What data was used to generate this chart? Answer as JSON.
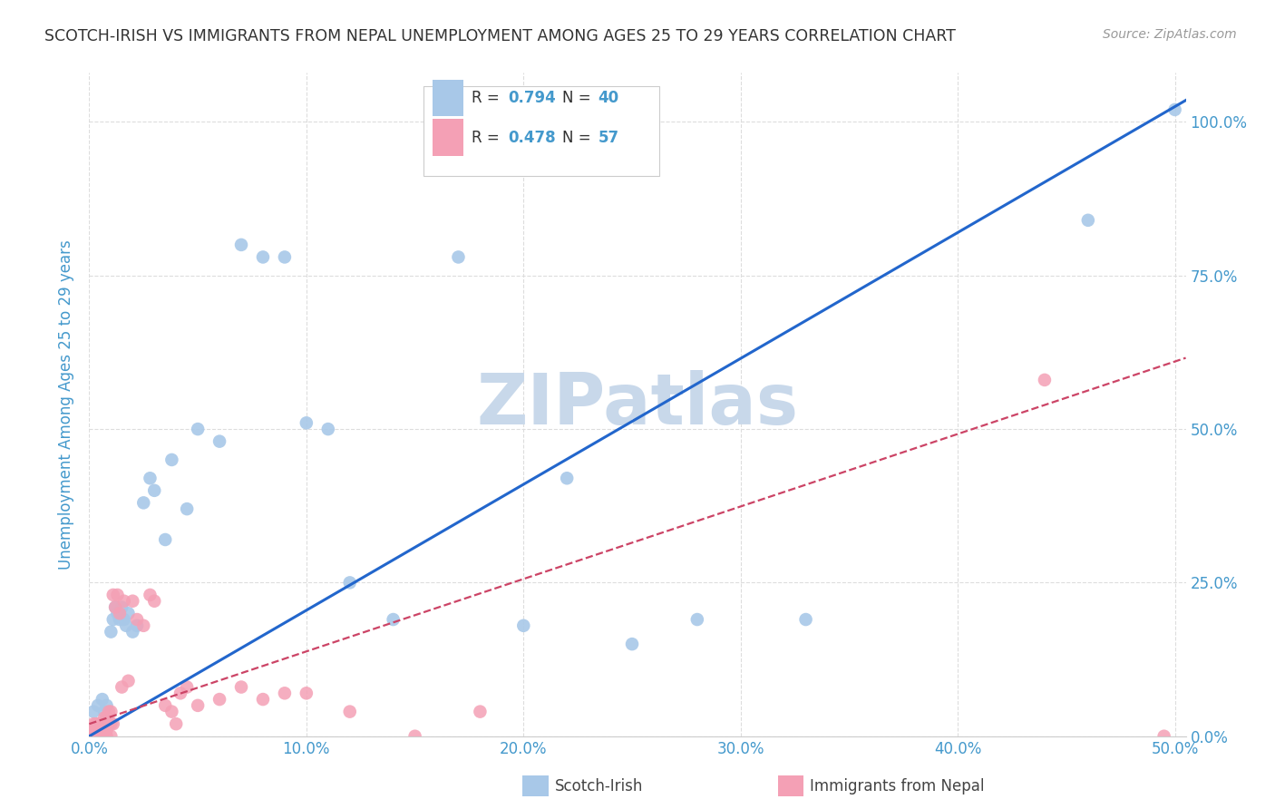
{
  "title": "SCOTCH-IRISH VS IMMIGRANTS FROM NEPAL UNEMPLOYMENT AMONG AGES 25 TO 29 YEARS CORRELATION CHART",
  "source": "Source: ZipAtlas.com",
  "ylabel": "Unemployment Among Ages 25 to 29 years",
  "scotch_irish_R": 0.794,
  "scotch_irish_N": 40,
  "nepal_R": 0.478,
  "nepal_N": 57,
  "scotch_irish_color": "#a8c8e8",
  "scotch_irish_line_color": "#2266cc",
  "nepal_color": "#f4a0b5",
  "nepal_line_color": "#cc4466",
  "watermark_color": "#c8d8ea",
  "background_color": "#ffffff",
  "grid_color": "#dddddd",
  "title_color": "#333333",
  "source_color": "#999999",
  "axis_label_color": "#4499cc",
  "legend_r_color": "#333333",
  "scotch_irish_x": [
    0.002,
    0.004,
    0.006,
    0.007,
    0.008,
    0.009,
    0.01,
    0.011,
    0.012,
    0.013,
    0.014,
    0.015,
    0.016,
    0.017,
    0.018,
    0.02,
    0.022,
    0.025,
    0.028,
    0.03,
    0.035,
    0.038,
    0.045,
    0.05,
    0.06,
    0.07,
    0.08,
    0.09,
    0.1,
    0.11,
    0.12,
    0.14,
    0.17,
    0.2,
    0.22,
    0.25,
    0.28,
    0.33,
    0.46,
    0.5
  ],
  "scotch_irish_y": [
    0.04,
    0.05,
    0.06,
    0.04,
    0.05,
    0.02,
    0.17,
    0.19,
    0.21,
    0.2,
    0.19,
    0.21,
    0.19,
    0.18,
    0.2,
    0.17,
    0.18,
    0.38,
    0.42,
    0.4,
    0.32,
    0.45,
    0.37,
    0.5,
    0.48,
    0.8,
    0.78,
    0.78,
    0.51,
    0.5,
    0.25,
    0.19,
    0.78,
    0.18,
    0.42,
    0.15,
    0.19,
    0.19,
    0.84,
    1.02
  ],
  "nepal_x": [
    0.001,
    0.001,
    0.002,
    0.002,
    0.002,
    0.003,
    0.003,
    0.003,
    0.004,
    0.004,
    0.004,
    0.005,
    0.005,
    0.005,
    0.006,
    0.006,
    0.006,
    0.007,
    0.007,
    0.007,
    0.008,
    0.008,
    0.008,
    0.009,
    0.009,
    0.01,
    0.01,
    0.01,
    0.011,
    0.011,
    0.012,
    0.013,
    0.014,
    0.015,
    0.016,
    0.018,
    0.02,
    0.022,
    0.025,
    0.028,
    0.03,
    0.035,
    0.038,
    0.04,
    0.042,
    0.045,
    0.05,
    0.06,
    0.07,
    0.08,
    0.09,
    0.1,
    0.12,
    0.15,
    0.18,
    0.44,
    0.495
  ],
  "nepal_y": [
    0.0,
    0.01,
    0.0,
    0.01,
    0.02,
    0.0,
    0.01,
    0.02,
    0.0,
    0.01,
    0.02,
    0.0,
    0.01,
    0.02,
    0.0,
    0.01,
    0.02,
    0.01,
    0.02,
    0.03,
    0.0,
    0.01,
    0.03,
    0.02,
    0.04,
    0.0,
    0.02,
    0.04,
    0.02,
    0.23,
    0.21,
    0.23,
    0.2,
    0.08,
    0.22,
    0.09,
    0.22,
    0.19,
    0.18,
    0.23,
    0.22,
    0.05,
    0.04,
    0.02,
    0.07,
    0.08,
    0.05,
    0.06,
    0.08,
    0.06,
    0.07,
    0.07,
    0.04,
    0.0,
    0.04,
    0.58,
    0.0
  ],
  "si_slope": 2.05,
  "si_intercept": 0.0,
  "np_slope": 1.18,
  "np_intercept": 0.02,
  "xlim": [
    0.0,
    0.505
  ],
  "ylim": [
    0.0,
    1.08
  ],
  "xtick_vals": [
    0.0,
    0.1,
    0.2,
    0.3,
    0.4,
    0.5
  ],
  "xtick_labels": [
    "0.0%",
    "10.0%",
    "20.0%",
    "30.0%",
    "40.0%",
    "50.0%"
  ],
  "ytick_vals": [
    0.0,
    0.25,
    0.5,
    0.75,
    1.0
  ],
  "ytick_labels": [
    "0.0%",
    "25.0%",
    "50.0%",
    "75.0%",
    "100.0%"
  ]
}
